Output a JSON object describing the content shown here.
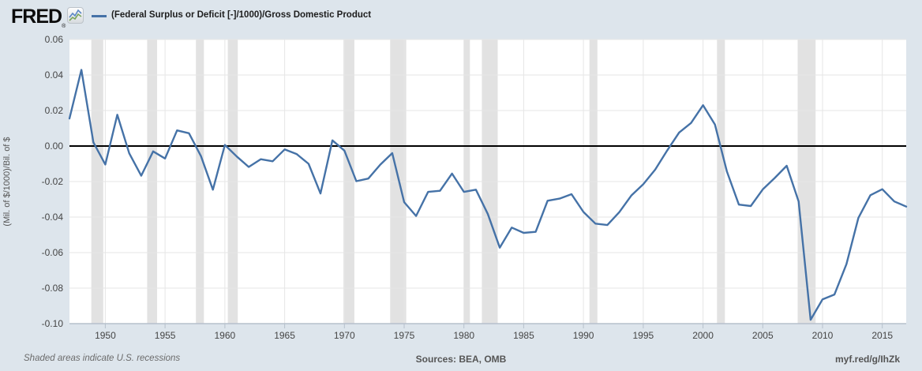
{
  "header": {
    "logo_text": "FRED",
    "registered_mark": "®",
    "legend": {
      "series_label": "(Federal Surplus or Deficit [-]/1000)/Gross Domestic Product",
      "swatch_color": "#4572a7"
    }
  },
  "chart_data": {
    "type": "line",
    "title": "(Federal Surplus or Deficit [-]/1000)/Gross Domestic Product",
    "xlabel": "",
    "ylabel": "(Mil. of $/1000)/Bil. of $",
    "xlim": [
      1947,
      2017
    ],
    "ylim": [
      -0.1,
      0.06
    ],
    "grid": true,
    "legend_position": "top-left",
    "y_tick_labels": [
      "0.06",
      "0.04",
      "0.02",
      "0.00",
      "-0.02",
      "-0.04",
      "-0.06",
      "-0.08",
      "-0.10"
    ],
    "y_ticks": [
      0.06,
      0.04,
      0.02,
      0.0,
      -0.02,
      -0.04,
      -0.06,
      -0.08,
      -0.1
    ],
    "x_ticks": [
      1950,
      1955,
      1960,
      1965,
      1970,
      1975,
      1980,
      1985,
      1990,
      1995,
      2000,
      2005,
      2010,
      2015
    ],
    "x": [
      1947,
      1948,
      1949,
      1950,
      1951,
      1952,
      1953,
      1954,
      1955,
      1956,
      1957,
      1958,
      1959,
      1960,
      1961,
      1962,
      1963,
      1964,
      1965,
      1966,
      1967,
      1968,
      1969,
      1970,
      1971,
      1972,
      1973,
      1974,
      1975,
      1976,
      1977,
      1978,
      1979,
      1980,
      1981,
      1982,
      1983,
      1984,
      1985,
      1986,
      1987,
      1988,
      1989,
      1990,
      1991,
      1992,
      1993,
      1994,
      1995,
      1996,
      1997,
      1998,
      1999,
      2000,
      2001,
      2002,
      2003,
      2004,
      2005,
      2006,
      2007,
      2008,
      2009,
      2010,
      2011,
      2012,
      2013,
      2014,
      2015,
      2016,
      2017
    ],
    "values": [
      0.0155,
      0.0429,
      0.0021,
      -0.0104,
      0.0176,
      -0.0041,
      -0.0167,
      -0.003,
      -0.007,
      0.0088,
      0.0072,
      -0.0057,
      -0.0246,
      0.0006,
      -0.0059,
      -0.0118,
      -0.0074,
      -0.0086,
      -0.0019,
      -0.0045,
      -0.01,
      -0.0267,
      0.0032,
      -0.0026,
      -0.0198,
      -0.0183,
      -0.0105,
      -0.004,
      -0.0316,
      -0.0394,
      -0.0258,
      -0.0252,
      -0.0155,
      -0.0258,
      -0.0246,
      -0.0383,
      -0.0572,
      -0.0459,
      -0.0489,
      -0.0483,
      -0.0308,
      -0.0296,
      -0.0271,
      -0.0371,
      -0.0437,
      -0.0445,
      -0.0372,
      -0.0279,
      -0.0215,
      -0.0133,
      -0.0026,
      0.0076,
      0.013,
      0.023,
      0.0121,
      -0.0144,
      -0.033,
      -0.0338,
      -0.0244,
      -0.018,
      -0.0111,
      -0.0312,
      -0.0978,
      -0.0863,
      -0.0836,
      -0.0665,
      -0.0405,
      -0.0277,
      -0.0243,
      -0.0312,
      -0.0341
    ],
    "recessions": [
      [
        1948.83,
        1949.83
      ],
      [
        1953.5,
        1954.33
      ],
      [
        1957.58,
        1958.25
      ],
      [
        1960.25,
        1961.08
      ],
      [
        1969.92,
        1970.83
      ],
      [
        1973.83,
        1975.17
      ],
      [
        1980.0,
        1980.5
      ],
      [
        1981.5,
        1982.83
      ],
      [
        1990.5,
        1991.17
      ],
      [
        2001.17,
        2001.83
      ],
      [
        2007.92,
        2009.42
      ]
    ],
    "colors": {
      "line": "#4572a7",
      "zero_line": "#000000",
      "recession_band": "#e2e2e2",
      "gridline": "#e6e6e6",
      "axis": "#b6c0cc",
      "plot_background": "#ffffff",
      "page_background": "#dde5ec"
    }
  },
  "footer": {
    "note": "Shaded areas indicate U.S. recessions",
    "sources": "Sources: BEA, OMB",
    "link": "myf.red/g/IhZk"
  }
}
